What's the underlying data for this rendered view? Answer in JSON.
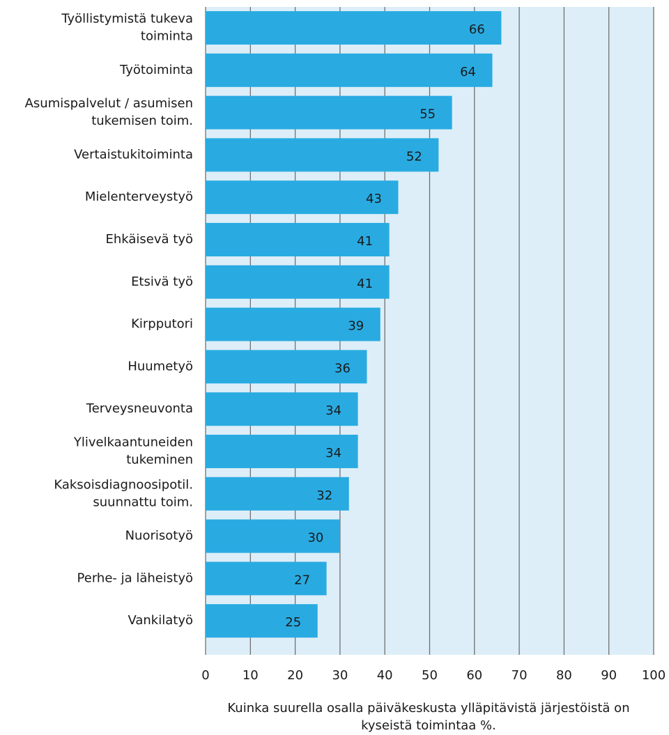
{
  "chart_data": {
    "type": "bar",
    "orientation": "horizontal",
    "categories": [
      "Työllistymistä tukeva\ntoiminta",
      "Työtoiminta",
      "Asumispalvelut / asumisen\ntukemisen toim.",
      "Vertaistukitoiminta",
      "Mielenterveystyö",
      "Ehkäisevä työ",
      "Etsivä työ",
      "Kirpputori",
      "Huumetyö",
      "Terveysneuvonta",
      "Ylivelkaantuneiden\ntukeminen",
      "Kaksoisdiagnoosipotil.\nsuunnattu toim.",
      "Nuorisotyö",
      "Perhe- ja läheistyö",
      "Vankilatyö"
    ],
    "values": [
      66,
      64,
      55,
      52,
      43,
      41,
      41,
      39,
      36,
      34,
      34,
      32,
      30,
      27,
      25
    ],
    "color": "#29abe2",
    "plot_background": "#ddeef8",
    "xlim": [
      0,
      100
    ],
    "xticks": [
      0,
      10,
      20,
      30,
      40,
      50,
      60,
      70,
      80,
      90,
      100
    ],
    "grid": true,
    "xlabel": "Kuinka suurella osalla päiväkeskusta ylläpitävistä järjestöistä on\nkyseistä toimintaa %."
  }
}
